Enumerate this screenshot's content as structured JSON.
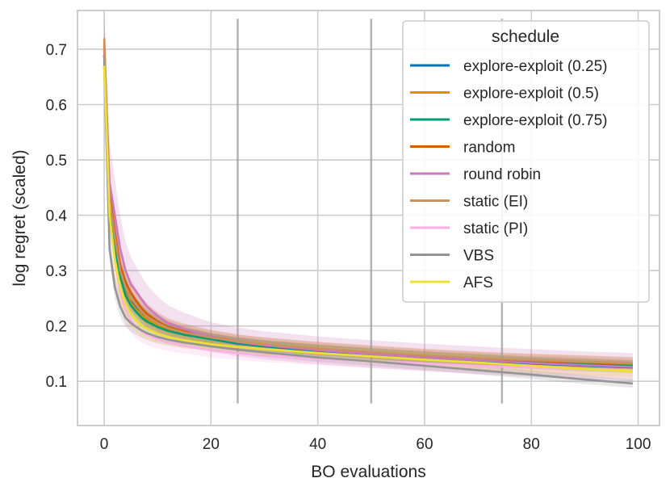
{
  "chart_data": {
    "type": "line",
    "xlabel": "BO evaluations",
    "ylabel": "log regret (scaled)",
    "xlim": [
      -5,
      104
    ],
    "ylim": [
      0.02,
      0.77
    ],
    "xticks": [
      0,
      20,
      40,
      60,
      80,
      100
    ],
    "yticks": [
      0.1,
      0.2,
      0.3,
      0.4,
      0.5,
      0.6,
      0.7
    ],
    "grid": true,
    "legend": {
      "title": "schedule",
      "position": "top-right"
    },
    "vertical_markers": [
      {
        "x": 25,
        "y_range": [
          0.06,
          0.755
        ]
      },
      {
        "x": 50,
        "y_range": [
          0.06,
          0.755
        ]
      },
      {
        "x": 74.5,
        "y_range": [
          0.06,
          0.755
        ]
      }
    ],
    "x": [
      0,
      1,
      2,
      3,
      4,
      5,
      6,
      7,
      8,
      10,
      12,
      15,
      20,
      25,
      30,
      40,
      50,
      60,
      70,
      80,
      90,
      99
    ],
    "series": [
      {
        "name": "explore-exploit (0.25)",
        "color": "#0173b2",
        "band": 0.01,
        "values": [
          0.69,
          0.43,
          0.36,
          0.3,
          0.265,
          0.245,
          0.232,
          0.222,
          0.214,
          0.203,
          0.195,
          0.187,
          0.176,
          0.168,
          0.163,
          0.155,
          0.148,
          0.142,
          0.137,
          0.132,
          0.128,
          0.125
        ]
      },
      {
        "name": "explore-exploit (0.5)",
        "color": "#de8f05",
        "band": 0.01,
        "values": [
          0.7,
          0.42,
          0.35,
          0.295,
          0.26,
          0.242,
          0.23,
          0.22,
          0.212,
          0.202,
          0.194,
          0.186,
          0.177,
          0.17,
          0.165,
          0.157,
          0.15,
          0.145,
          0.14,
          0.135,
          0.132,
          0.128
        ]
      },
      {
        "name": "explore-exploit (0.75)",
        "color": "#029e73",
        "band": 0.01,
        "values": [
          0.69,
          0.41,
          0.34,
          0.29,
          0.255,
          0.237,
          0.225,
          0.215,
          0.208,
          0.198,
          0.191,
          0.184,
          0.176,
          0.169,
          0.164,
          0.156,
          0.15,
          0.144,
          0.139,
          0.134,
          0.131,
          0.128
        ]
      },
      {
        "name": "random",
        "color": "#d55e00",
        "band": 0.012,
        "values": [
          0.71,
          0.44,
          0.37,
          0.31,
          0.28,
          0.26,
          0.245,
          0.232,
          0.222,
          0.208,
          0.198,
          0.19,
          0.18,
          0.172,
          0.167,
          0.159,
          0.152,
          0.146,
          0.141,
          0.137,
          0.134,
          0.131
        ]
      },
      {
        "name": "round robin",
        "color": "#cc78bc",
        "band": 0.025,
        "values": [
          0.7,
          0.46,
          0.4,
          0.34,
          0.3,
          0.275,
          0.262,
          0.248,
          0.235,
          0.218,
          0.205,
          0.194,
          0.18,
          0.171,
          0.165,
          0.156,
          0.149,
          0.143,
          0.138,
          0.133,
          0.129,
          0.126
        ]
      },
      {
        "name": "static (EI)",
        "color": "#ca9161",
        "band": 0.012,
        "values": [
          0.72,
          0.43,
          0.36,
          0.3,
          0.27,
          0.25,
          0.238,
          0.226,
          0.217,
          0.205,
          0.196,
          0.188,
          0.179,
          0.172,
          0.167,
          0.159,
          0.153,
          0.147,
          0.142,
          0.138,
          0.135,
          0.132
        ]
      },
      {
        "name": "static (PI)",
        "color": "#fbafe4",
        "band": 0.012,
        "values": [
          0.67,
          0.4,
          0.32,
          0.26,
          0.23,
          0.21,
          0.198,
          0.19,
          0.184,
          0.176,
          0.17,
          0.164,
          0.156,
          0.151,
          0.147,
          0.141,
          0.136,
          0.132,
          0.128,
          0.125,
          0.122,
          0.12
        ]
      },
      {
        "name": "VBS",
        "color": "#949494",
        "band": 0.008,
        "values": [
          0.67,
          0.34,
          0.27,
          0.235,
          0.215,
          0.205,
          0.198,
          0.192,
          0.187,
          0.18,
          0.175,
          0.17,
          0.163,
          0.157,
          0.152,
          0.143,
          0.136,
          0.128,
          0.12,
          0.112,
          0.103,
          0.096
        ]
      },
      {
        "name": "AFS",
        "color": "#ece133",
        "band": 0.012,
        "values": [
          0.67,
          0.4,
          0.32,
          0.27,
          0.24,
          0.222,
          0.21,
          0.201,
          0.195,
          0.186,
          0.18,
          0.174,
          0.167,
          0.162,
          0.158,
          0.151,
          0.145,
          0.139,
          0.134,
          0.128,
          0.122,
          0.118
        ]
      }
    ]
  }
}
